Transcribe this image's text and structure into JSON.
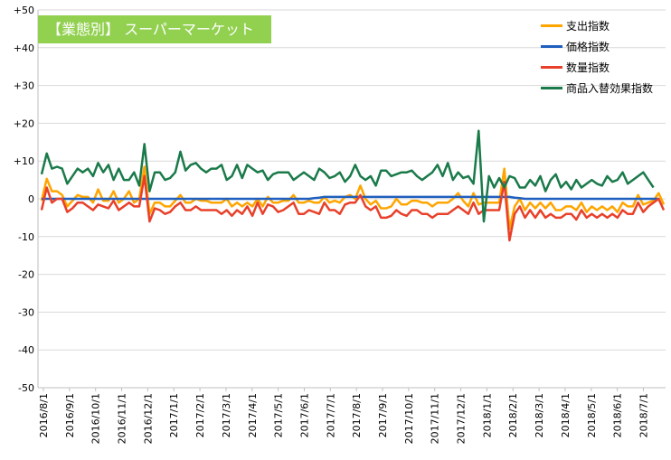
{
  "title": "【業態別】 スーパーマーケット",
  "colors": {
    "title_bg": "#92d050",
    "grid": "#d9d9d9",
    "axis": "#bfbfbf"
  },
  "chart_data": {
    "type": "line",
    "title": "【業態別】 スーパーマーケット",
    "ylim": [
      -50,
      50
    ],
    "yticks": [
      "+50",
      "+40",
      "+30",
      "+20",
      "+10",
      "0",
      "-10",
      "-20",
      "-30",
      "-40",
      "-50"
    ],
    "grid": true,
    "legend_position": "top-right",
    "x_tick_labels": [
      "2016/8/1",
      "2016/9/1",
      "2016/10/1",
      "2016/11/1",
      "2016/12/1",
      "2017/1/1",
      "2017/2/1",
      "2017/3/1",
      "2017/4/1",
      "2017/5/1",
      "2017/6/1",
      "2017/7/1",
      "2017/8/1",
      "2017/9/1",
      "2017/10/1",
      "2017/11/1",
      "2017/12/1",
      "2018/1/1",
      "2018/2/1",
      "2018/3/1",
      "2018/4/1",
      "2018/5/1",
      "2018/6/1",
      "2018/7/1"
    ],
    "series": [
      {
        "name": "支出指数",
        "color": "#ffa500",
        "values": [
          -0.5,
          5.3,
          2,
          2,
          1,
          -2,
          -0.5,
          1,
          0.5,
          0.5,
          -1,
          2.5,
          -0.5,
          -0.5,
          2,
          -1,
          0,
          2,
          -1,
          0,
          8.5,
          -4,
          -1,
          -1,
          -2,
          -2,
          -0.5,
          1,
          -1,
          -1,
          0,
          -0.5,
          -0.5,
          -1,
          -1,
          -1,
          0,
          -2,
          -1,
          -2,
          -1,
          -2,
          0,
          -2,
          0.5,
          -1,
          -1,
          -0.5,
          -0.5,
          1,
          -1,
          -1,
          -0.5,
          -1,
          -1,
          0.5,
          -1,
          -0.5,
          -1,
          0.5,
          1,
          0,
          3.5,
          0,
          -1.5,
          -0.5,
          -2.5,
          -2.5,
          -2,
          0,
          -1.5,
          -1.5,
          -0.5,
          -0.5,
          -1,
          -1,
          -2,
          -1,
          -1,
          -1,
          0,
          1.5,
          -0.5,
          -2,
          1.5,
          -1.5,
          -1,
          -1,
          -1,
          -1,
          8,
          -8,
          -2,
          0,
          -3,
          -1,
          -2.5,
          -1,
          -2.5,
          -1,
          -3,
          -3,
          -2,
          -2,
          -3,
          -1,
          -3.5,
          -2,
          -3,
          -2,
          -3,
          -2,
          -3.5,
          -1,
          -2,
          -2,
          1,
          -1.5,
          -1,
          -0.5,
          1.5,
          -1.5
        ],
        "style": "line"
      },
      {
        "name": "価格指数",
        "color": "#1f5fbf",
        "values": [
          0,
          0,
          0,
          0,
          0,
          0,
          0,
          0,
          0,
          0,
          0,
          0,
          0,
          0,
          0,
          0,
          0,
          0,
          0,
          0,
          0,
          0,
          0,
          0,
          0,
          0,
          0,
          0,
          0,
          0,
          0,
          0,
          0,
          0,
          0,
          0,
          0,
          0,
          0,
          0,
          0,
          0,
          0,
          0,
          0,
          0,
          0,
          0,
          0,
          0,
          0,
          0,
          0,
          0.2,
          0.3,
          0.5,
          0.5,
          0.5,
          0.5,
          0.5,
          0.5,
          0.5,
          0.5,
          0.5,
          0.5,
          0.5,
          0.5,
          0.5,
          0.5,
          0.5,
          0.5,
          0.5,
          0.5,
          0.5,
          0.5,
          0.5,
          0.5,
          0.5,
          0.5,
          0.5,
          0.5,
          0.5,
          0.5,
          0.5,
          0.5,
          0.5,
          0.5,
          0.5,
          0.5,
          0.5,
          0.5,
          0.5,
          0.3,
          0.2,
          0,
          0,
          0,
          0,
          0,
          0,
          0,
          0,
          0,
          0,
          0,
          0,
          0,
          0,
          0,
          0,
          0,
          0,
          0,
          0,
          0,
          0,
          0,
          0,
          0,
          0,
          0
        ],
        "style": "line"
      },
      {
        "name": "数量指数",
        "color": "#e8402a",
        "values": [
          -3,
          3,
          -1,
          0,
          0,
          -3.5,
          -2.5,
          -1,
          -1,
          -2,
          -3,
          -1.5,
          -2,
          -2.5,
          -0.5,
          -3,
          -2,
          -1,
          -2,
          -2,
          6,
          -6,
          -2.5,
          -3,
          -4,
          -3.5,
          -2,
          -1,
          -3,
          -3,
          -2,
          -3,
          -3,
          -3,
          -3,
          -4,
          -3,
          -4.5,
          -3,
          -4,
          -2,
          -4.5,
          -1,
          -4,
          -1.5,
          -2,
          -3.5,
          -3,
          -2,
          -1,
          -4,
          -4,
          -3,
          -3.5,
          -4,
          -1,
          -3,
          -3,
          -4,
          -1.5,
          -1,
          -1,
          1,
          -2,
          -3,
          -2,
          -5,
          -5,
          -4.5,
          -3,
          -4,
          -4.5,
          -3,
          -3,
          -4,
          -4,
          -5,
          -4,
          -4,
          -4,
          -3,
          -2,
          -3,
          -4,
          -1,
          -4,
          -3,
          -3,
          -3,
          -3,
          4.5,
          -11,
          -4,
          -2,
          -5,
          -3,
          -5,
          -3,
          -5,
          -4,
          -5,
          -5,
          -4,
          -4,
          -5.5,
          -3,
          -5,
          -4,
          -5,
          -4,
          -5,
          -4,
          -5,
          -3,
          -4,
          -4,
          -1,
          -3.5,
          -2,
          -1,
          0,
          -3
        ],
        "style": "line"
      },
      {
        "name": "商品入替効果指数",
        "color": "#1a7a4a",
        "values": [
          6.5,
          12,
          8,
          8.5,
          8,
          4,
          6,
          8,
          7,
          8,
          6,
          9.5,
          7,
          9,
          5,
          8,
          5,
          5,
          7,
          3.5,
          14.5,
          2,
          7,
          7,
          5,
          5.5,
          7,
          12.5,
          7.5,
          9,
          9.5,
          8,
          7,
          8,
          8,
          9,
          5,
          6,
          9,
          5.5,
          9,
          8,
          7,
          7.5,
          5,
          6.5,
          7,
          7,
          7,
          5,
          6,
          7,
          6,
          5,
          8,
          7,
          5.5,
          6,
          7,
          4.5,
          6,
          9,
          6,
          5,
          6,
          3.5,
          7.5,
          7.5,
          6,
          6.5,
          7,
          7,
          7.5,
          6,
          5,
          6,
          7,
          9,
          6,
          9.5,
          5,
          7,
          5.5,
          6,
          4,
          18,
          -6,
          6,
          3,
          5.5,
          3,
          6,
          5.5,
          3,
          3,
          5,
          3.5,
          6,
          2,
          5,
          6.5,
          3,
          4.5,
          2.5,
          5,
          3,
          4,
          5,
          4,
          3.5,
          6,
          4.5,
          5,
          7,
          4,
          5,
          6,
          7,
          5,
          3
        ],
        "style": "line"
      }
    ]
  }
}
